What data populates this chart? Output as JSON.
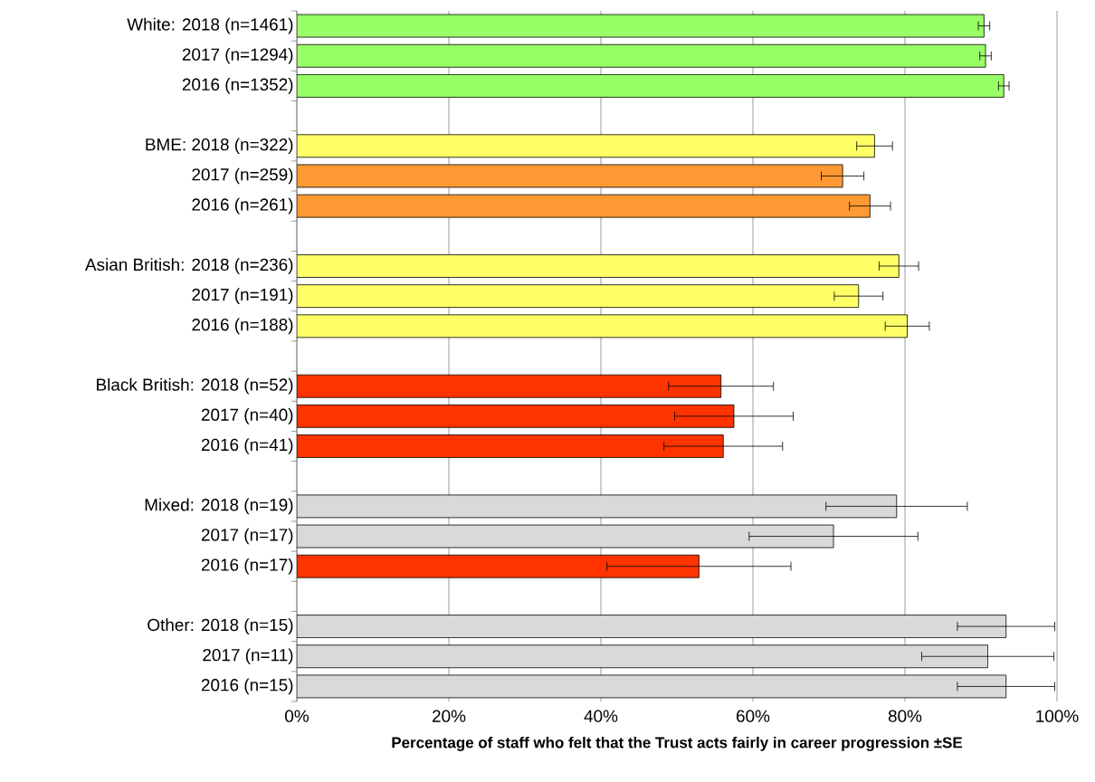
{
  "chart_data": {
    "type": "bar",
    "orientation": "horizontal",
    "xlabel": "Percentage of staff who felt that the Trust acts fairly in career progression ±SE",
    "categories": [
      "White: 2018 (n=1461)",
      "2017 (n=1294)",
      "2016 (n=1352)",
      null,
      "BME: 2018 (n=322)",
      "2017 (n=259)",
      "2016 (n=261)",
      null,
      "Asian British: 2018 (n=236)",
      "2017 (n=191)",
      "2016 (n=188)",
      null,
      "Black British: 2018 (n=52)",
      "2017 (n=40)",
      "2016 (n=41)",
      null,
      "Mixed: 2018 (n=19)",
      "2017 (n=17)",
      "2016 (n=17)",
      null,
      "Other: 2018 (n=15)",
      "2017 (n=11)",
      "2016 (n=15)"
    ],
    "values": [
      90.4,
      90.6,
      93.0,
      null,
      76.0,
      71.8,
      75.4,
      null,
      79.2,
      73.9,
      80.3,
      null,
      55.8,
      57.5,
      56.1,
      null,
      78.9,
      70.6,
      52.9,
      null,
      93.3,
      90.9,
      93.3
    ],
    "errors": [
      0.75,
      0.75,
      0.7,
      null,
      2.35,
      2.8,
      2.7,
      null,
      2.6,
      3.2,
      2.9,
      null,
      6.9,
      7.8,
      7.8,
      null,
      9.3,
      11.1,
      12.1,
      null,
      6.4,
      8.7,
      6.4
    ],
    "colors": [
      "#99ff66",
      "#99ff66",
      "#99ff66",
      null,
      "#ffff66",
      "#ff9933",
      "#ff9933",
      null,
      "#ffff66",
      "#ffff66",
      "#ffff66",
      null,
      "#ff3300",
      "#ff3300",
      "#ff3300",
      null,
      "#d9d9d9",
      "#d9d9d9",
      "#ff3300",
      null,
      "#d9d9d9",
      "#d9d9d9",
      "#d9d9d9"
    ],
    "xlim": [
      0,
      100
    ],
    "xticks": [
      {
        "value": 0,
        "label": "0%"
      },
      {
        "value": 20,
        "label": "20%"
      },
      {
        "value": 40,
        "label": "40%"
      },
      {
        "value": 60,
        "label": "60%"
      },
      {
        "value": 80,
        "label": "80%"
      },
      {
        "value": 100,
        "label": "100%"
      }
    ],
    "grid": "x"
  }
}
